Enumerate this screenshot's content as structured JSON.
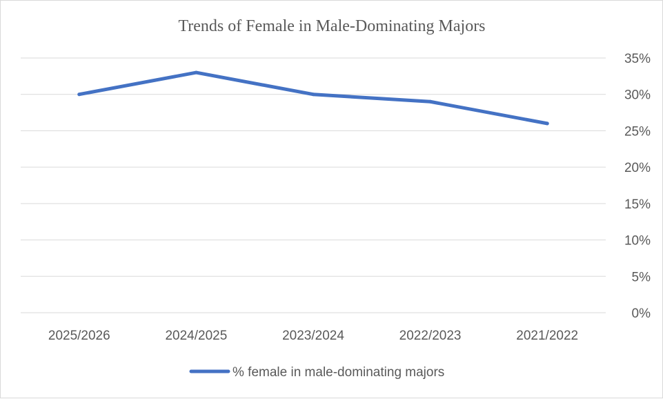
{
  "chart_data": {
    "type": "line",
    "title": "Trends of Female in Male-Dominating Majors",
    "categories": [
      "2025/2026",
      "2024/2025",
      "2023/2024",
      "2022/2023",
      "2021/2022"
    ],
    "series": [
      {
        "name": "% female in male-dominating majors",
        "values": [
          0.3,
          0.33,
          0.3,
          0.29,
          0.26
        ],
        "color": "#4472C4"
      }
    ],
    "y_axis": {
      "position": "right",
      "ylim": [
        0,
        0.35
      ],
      "ticks": [
        0,
        0.05,
        0.1,
        0.15,
        0.2,
        0.25,
        0.3,
        0.35
      ],
      "tick_labels": [
        "0%",
        "5%",
        "10%",
        "15%",
        "20%",
        "25%",
        "30%",
        "35%"
      ]
    },
    "grid": true,
    "legend": "bottom"
  }
}
